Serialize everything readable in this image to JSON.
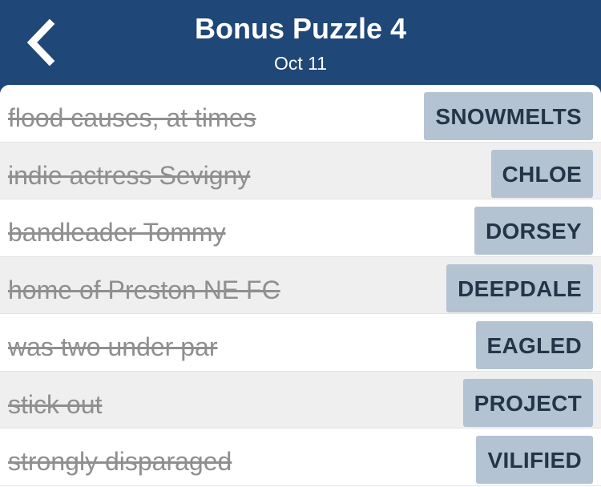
{
  "header": {
    "title": "Bonus Puzzle 4",
    "date": "Oct 11",
    "back_icon": "chevron-left-icon"
  },
  "colors": {
    "header_bg": "#1f4777",
    "answer_bg": "#b4c3d2",
    "answer_text": "#243548",
    "clue_text": "#8f8f8f"
  },
  "clues": [
    {
      "clue": "flood causes, at times",
      "answer": "SNOWMELTS"
    },
    {
      "clue": "indie actress Sevigny",
      "answer": "CHLOE"
    },
    {
      "clue": "bandleader Tommy",
      "answer": "DORSEY"
    },
    {
      "clue": "home of Preston NE FC",
      "answer": "DEEPDALE"
    },
    {
      "clue": "was two under par",
      "answer": "EAGLED"
    },
    {
      "clue": "stick out",
      "answer": "PROJECT"
    },
    {
      "clue": "strongly disparaged",
      "answer": "VILIFIED"
    }
  ]
}
